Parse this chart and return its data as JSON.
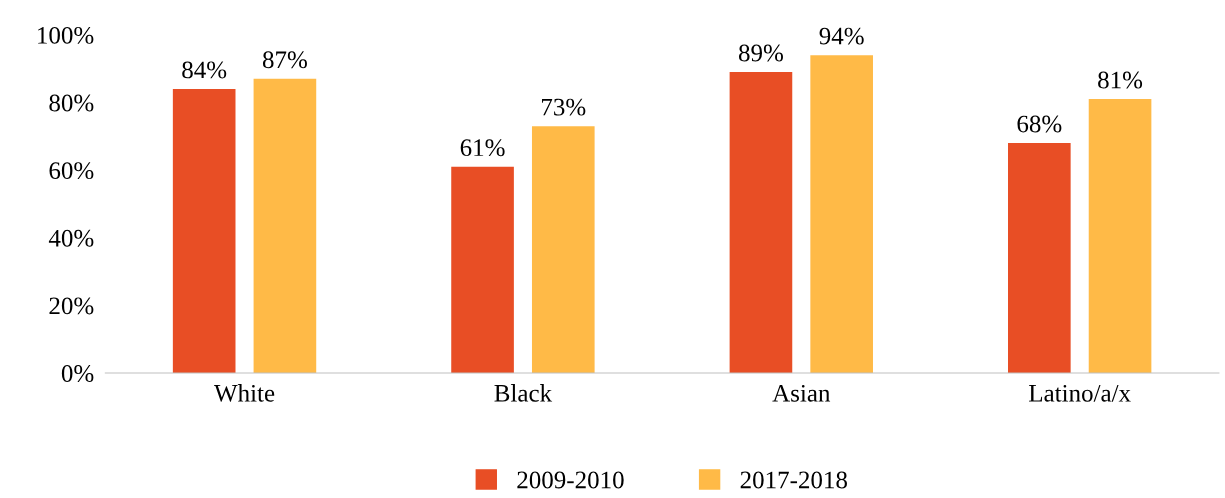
{
  "chart_data": {
    "type": "bar",
    "categories": [
      "White",
      "Black",
      "Asian",
      "Latino/a/x"
    ],
    "series": [
      {
        "name": "2009-2010",
        "color": "#e84e25",
        "values": [
          84,
          61,
          89,
          68
        ],
        "value_labels": [
          "84%",
          "61%",
          "89%",
          "68%"
        ]
      },
      {
        "name": "2017-2018",
        "color": "#ffba47",
        "values": [
          87,
          73,
          94,
          81
        ],
        "value_labels": [
          "87%",
          "73%",
          "94%",
          "81%"
        ]
      }
    ],
    "ylim": [
      0,
      100
    ],
    "yticks": [
      {
        "value": 0,
        "label": "0%"
      },
      {
        "value": 20,
        "label": "20%"
      },
      {
        "value": 40,
        "label": "40%"
      },
      {
        "value": 60,
        "label": "60%"
      },
      {
        "value": 80,
        "label": "80%"
      },
      {
        "value": 100,
        "label": "100%"
      }
    ],
    "grid": false,
    "legend": "bottom"
  }
}
